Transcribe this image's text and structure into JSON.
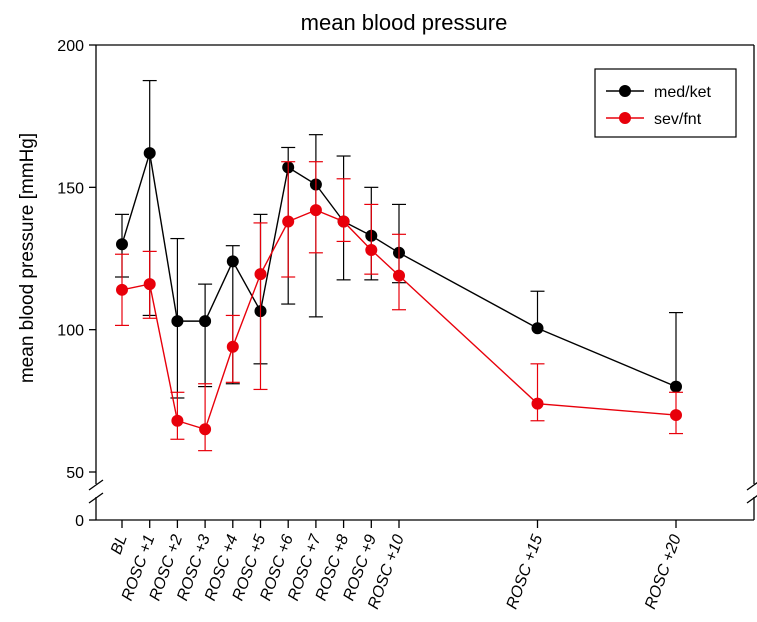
{
  "chart_data": {
    "type": "line",
    "title": "mean blood pressure",
    "xlabel": "",
    "ylabel": "mean blood pressure [mmHg]",
    "ylim": [
      0,
      200
    ],
    "axis_break": [
      0,
      50
    ],
    "yticks": [
      0,
      50,
      100,
      150,
      200
    ],
    "categories": [
      "BL",
      "ROSC +1",
      "ROSC +2",
      "ROSC +3",
      "ROSC +4",
      "ROSC +5",
      "ROSC +6",
      "ROSC +7",
      "ROSC +8",
      "ROSC +9",
      "ROSC +10",
      "ROSC +15",
      "ROSC +20"
    ],
    "x": [
      0,
      1,
      2,
      3,
      4,
      5,
      6,
      7,
      8,
      9,
      10,
      15,
      20
    ],
    "grid": false,
    "legend_position": "top-right",
    "series": [
      {
        "name": "med/ket",
        "color": "#000000",
        "values": [
          130,
          162,
          103,
          103,
          124,
          106.5,
          157,
          151,
          138,
          133,
          127,
          100.5,
          80
        ],
        "err_upper": [
          140.5,
          187.5,
          132,
          116,
          129.5,
          140.5,
          164,
          168.5,
          161,
          150,
          144,
          113.5,
          106
        ],
        "err_lower": [
          118.5,
          105,
          76,
          80,
          81,
          88,
          109,
          104.5,
          117.5,
          117.5,
          116.5,
          null,
          null
        ]
      },
      {
        "name": "sev/fnt",
        "color": "#e8000b",
        "values": [
          114,
          116,
          68,
          65,
          94,
          119.5,
          138,
          142,
          138,
          128,
          119,
          74,
          70
        ],
        "err_upper": [
          126.5,
          127.5,
          78,
          81,
          105,
          137.5,
          159,
          159,
          153,
          144,
          133.5,
          88,
          78
        ],
        "err_lower": [
          101.5,
          104,
          61.5,
          57.5,
          81.5,
          79,
          118.5,
          127,
          131,
          119.5,
          107,
          68,
          63.5
        ]
      }
    ]
  }
}
